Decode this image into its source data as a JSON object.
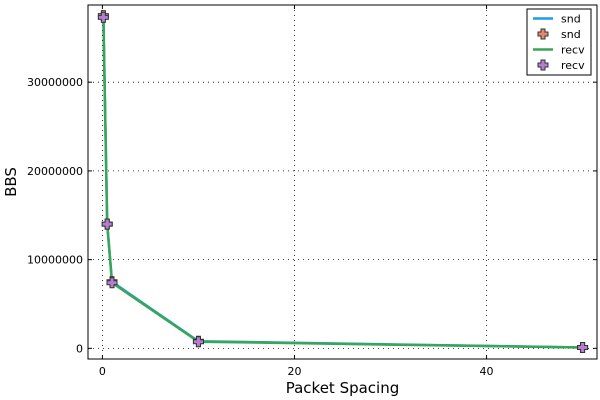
{
  "chart_data": {
    "type": "line",
    "xlabel": "Packet Spacing",
    "ylabel": "BBS",
    "xlim": [
      -1.5,
      51.5
    ],
    "ylim": [
      -1200000,
      38700000
    ],
    "x_ticks": [
      0,
      20,
      40
    ],
    "x_tick_labels": [
      "0",
      "20",
      "40"
    ],
    "y_ticks": [
      0,
      10000000,
      20000000,
      30000000
    ],
    "y_tick_labels": [
      "0",
      "10000000",
      "20000000",
      "30000000"
    ],
    "grid": true,
    "legend_position": "top-right",
    "x": [
      0.1,
      0.5,
      1,
      10,
      50
    ],
    "series": [
      {
        "name": "snd",
        "kind": "line",
        "color": "#1f9be8",
        "values": [
          37500000,
          14000000,
          7500000,
          800000,
          100000
        ]
      },
      {
        "name": "snd",
        "kind": "marker",
        "color": "#e0896c",
        "values": [
          37500000,
          14000000,
          7500000,
          800000,
          100000
        ]
      },
      {
        "name": "recv",
        "kind": "line",
        "color": "#3aa457",
        "values": [
          37300000,
          14000000,
          7400000,
          750000,
          90000
        ]
      },
      {
        "name": "recv",
        "kind": "marker",
        "color": "#b57fd1",
        "values": [
          37300000,
          14000000,
          7400000,
          750000,
          90000
        ]
      }
    ]
  }
}
